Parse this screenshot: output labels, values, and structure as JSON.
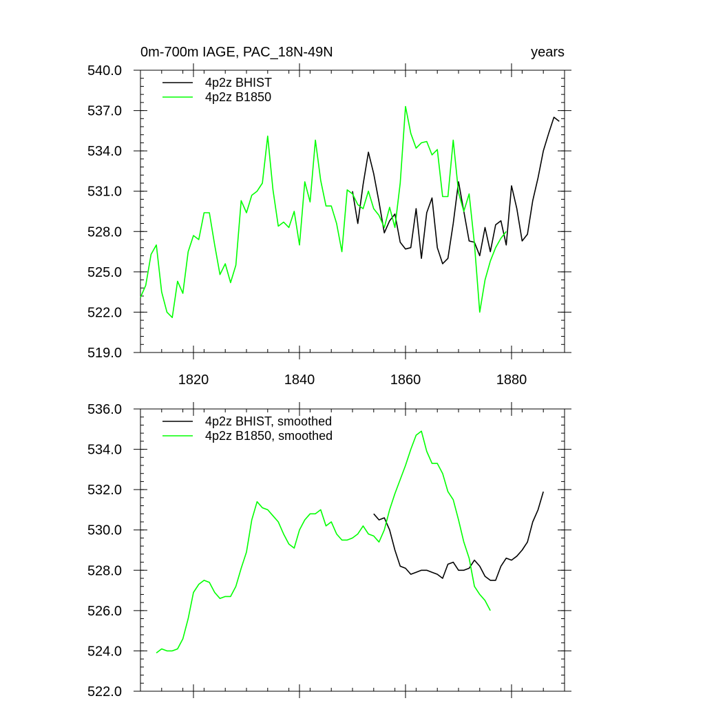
{
  "page_title": "0m-700m IAGE, PAC_18N-49N",
  "units_label": "years",
  "colors": {
    "bhist": "#000000",
    "b1850": "#00ff00"
  },
  "chart_data": [
    {
      "type": "line",
      "title": "0m-700m IAGE, PAC_18N-49N",
      "xlabel": "",
      "ylabel": "years",
      "xlim": [
        1810,
        1890
      ],
      "ylim": [
        519,
        540
      ],
      "yticks": [
        519,
        522,
        525,
        528,
        531,
        534,
        537,
        540
      ],
      "ytick_labels": [
        "519.0",
        "522.0",
        "525.0",
        "528.0",
        "531.0",
        "534.0",
        "537.0",
        "540.0"
      ],
      "xticks": [
        1820,
        1840,
        1860,
        1880
      ],
      "xtick_labels": [
        "1820",
        "1840",
        "1860",
        "1880"
      ],
      "legend_position": "top-left",
      "series": [
        {
          "name": "4p2z BHIST",
          "color": "#000000",
          "x": [
            1850,
            1851,
            1852,
            1853,
            1854,
            1855,
            1856,
            1857,
            1858,
            1859,
            1860,
            1861,
            1862,
            1863,
            1864,
            1865,
            1866,
            1867,
            1868,
            1869,
            1870,
            1871,
            1872,
            1873,
            1874,
            1875,
            1876,
            1877,
            1878,
            1879,
            1880,
            1881,
            1882,
            1883,
            1884,
            1885,
            1886,
            1887,
            1888,
            1889
          ],
          "y": [
            531.0,
            528.6,
            531.5,
            533.9,
            532.3,
            530.2,
            527.9,
            528.8,
            529.3,
            527.2,
            526.7,
            526.8,
            529.7,
            526.0,
            529.4,
            530.5,
            526.8,
            525.6,
            526.0,
            528.6,
            531.7,
            529.5,
            527.3,
            527.2,
            526.2,
            528.3,
            526.5,
            528.5,
            528.8,
            527.0,
            531.4,
            529.7,
            527.3,
            527.8,
            530.3,
            532.0,
            534.0,
            535.3,
            536.5,
            536.2
          ]
        },
        {
          "name": "4p2z B1850",
          "color": "#00ff00",
          "x": [
            1810,
            1811,
            1812,
            1813,
            1814,
            1815,
            1816,
            1817,
            1818,
            1819,
            1820,
            1821,
            1822,
            1823,
            1824,
            1825,
            1826,
            1827,
            1828,
            1829,
            1830,
            1831,
            1832,
            1833,
            1834,
            1835,
            1836,
            1837,
            1838,
            1839,
            1840,
            1841,
            1842,
            1843,
            1844,
            1845,
            1846,
            1847,
            1848,
            1849,
            1850,
            1851,
            1852,
            1853,
            1854,
            1855,
            1856,
            1857,
            1858,
            1859,
            1860,
            1861,
            1862,
            1863,
            1864,
            1865,
            1866,
            1867,
            1868,
            1869,
            1870,
            1871,
            1872,
            1873,
            1874,
            1875,
            1876,
            1877,
            1878,
            1879
          ],
          "y": [
            523.1,
            524.0,
            526.3,
            527.0,
            523.5,
            522.0,
            521.6,
            524.3,
            523.4,
            526.5,
            527.7,
            527.4,
            529.4,
            529.4,
            527.0,
            524.8,
            525.6,
            524.2,
            525.5,
            530.3,
            529.4,
            530.7,
            531.0,
            531.6,
            535.1,
            531.1,
            528.4,
            528.7,
            528.3,
            529.5,
            527.0,
            531.7,
            530.2,
            534.8,
            531.8,
            529.9,
            529.9,
            528.6,
            526.5,
            531.1,
            530.8,
            530.0,
            529.7,
            531.0,
            529.7,
            529.2,
            528.3,
            529.8,
            528.3,
            531.6,
            537.3,
            535.3,
            534.2,
            534.6,
            534.7,
            533.7,
            534.1,
            530.6,
            530.6,
            534.8,
            530.9,
            529.5,
            530.8,
            527.1,
            522.0,
            524.4,
            525.8,
            526.8,
            527.5,
            528.0
          ]
        }
      ]
    },
    {
      "type": "line",
      "title": "",
      "xlabel": "",
      "ylabel": "",
      "xlim": [
        1810,
        1890
      ],
      "ylim": [
        522,
        536
      ],
      "yticks": [
        522,
        524,
        526,
        528,
        530,
        532,
        534,
        536
      ],
      "ytick_labels": [
        "522.0",
        "524.0",
        "526.0",
        "528.0",
        "530.0",
        "532.0",
        "534.0",
        "536.0"
      ],
      "xticks": [
        1820,
        1840,
        1860,
        1880
      ],
      "xtick_labels": [],
      "legend_position": "top-left",
      "series": [
        {
          "name": "4p2z BHIST, smoothed",
          "color": "#000000",
          "x": [
            1854,
            1855,
            1856,
            1857,
            1858,
            1859,
            1860,
            1861,
            1862,
            1863,
            1864,
            1865,
            1866,
            1867,
            1868,
            1869,
            1870,
            1871,
            1872,
            1873,
            1874,
            1875,
            1876,
            1877,
            1878,
            1879,
            1880,
            1881,
            1882,
            1883,
            1884,
            1885,
            1886
          ],
          "y": [
            530.8,
            530.5,
            530.6,
            530.0,
            529.0,
            528.2,
            528.1,
            527.8,
            527.9,
            528.0,
            528.0,
            527.9,
            527.8,
            527.6,
            528.3,
            528.4,
            528.0,
            528.0,
            528.1,
            528.5,
            528.2,
            527.7,
            527.5,
            527.5,
            528.2,
            528.6,
            528.5,
            528.7,
            529.0,
            529.4,
            530.4,
            531.0,
            531.9
          ]
        },
        {
          "name": "4p2z B1850, smoothed",
          "color": "#00ff00",
          "x": [
            1813,
            1814,
            1815,
            1816,
            1817,
            1818,
            1819,
            1820,
            1821,
            1822,
            1823,
            1824,
            1825,
            1826,
            1827,
            1828,
            1829,
            1830,
            1831,
            1832,
            1833,
            1834,
            1835,
            1836,
            1837,
            1838,
            1839,
            1840,
            1841,
            1842,
            1843,
            1844,
            1845,
            1846,
            1847,
            1848,
            1849,
            1850,
            1851,
            1852,
            1853,
            1854,
            1855,
            1856,
            1857,
            1858,
            1859,
            1860,
            1861,
            1862,
            1863,
            1864,
            1865,
            1866,
            1867,
            1868,
            1869,
            1870,
            1871,
            1872,
            1873,
            1874,
            1875,
            1876
          ],
          "y": [
            523.9,
            524.1,
            524.0,
            524.0,
            524.1,
            524.6,
            525.6,
            526.9,
            527.3,
            527.5,
            527.4,
            526.9,
            526.6,
            526.7,
            526.7,
            527.2,
            528.1,
            528.9,
            530.5,
            531.4,
            531.1,
            531.0,
            530.7,
            530.4,
            529.8,
            529.3,
            529.1,
            530.0,
            530.5,
            530.8,
            530.8,
            531.0,
            530.2,
            530.4,
            529.8,
            529.5,
            529.5,
            529.6,
            529.8,
            530.2,
            529.8,
            529.7,
            529.4,
            530.0,
            531.0,
            531.8,
            532.5,
            533.2,
            534.0,
            534.7,
            534.9,
            533.9,
            533.3,
            533.3,
            532.8,
            531.9,
            531.5,
            530.5,
            529.4,
            528.6,
            527.2,
            526.8,
            526.5,
            526.0
          ]
        }
      ]
    }
  ]
}
